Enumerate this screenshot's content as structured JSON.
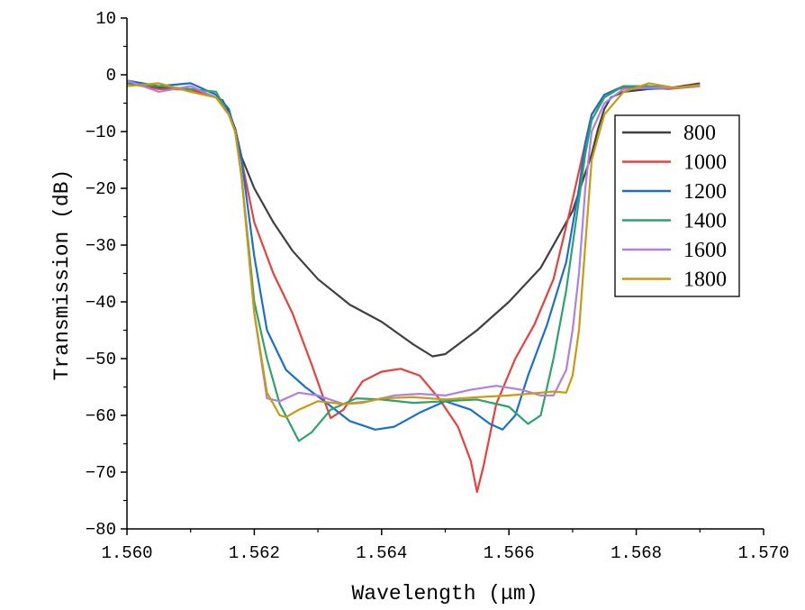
{
  "chart_data": {
    "type": "line",
    "title": "",
    "xlabel": "Wavelength (μm)",
    "ylabel": "Transmission (dB)",
    "xlim": [
      1.56,
      1.57
    ],
    "ylim": [
      -80,
      10
    ],
    "xticks": [
      "1.560",
      "1.562",
      "1.564",
      "1.566",
      "1.568",
      "1.570"
    ],
    "yticks": [
      "10",
      "0",
      "−10",
      "−20",
      "−30",
      "−40",
      "−50",
      "−60",
      "−70",
      "−80"
    ],
    "grid": false,
    "legend_position": "top-right",
    "series": [
      {
        "name": "800",
        "color": "#404040",
        "x": [
          1.56,
          1.5605,
          1.561,
          1.5613,
          1.5615,
          1.5616,
          1.5617,
          1.5618,
          1.562,
          1.5623,
          1.5626,
          1.563,
          1.5635,
          1.564,
          1.5645,
          1.5648,
          1.565,
          1.5655,
          1.566,
          1.5665,
          1.567,
          1.5673,
          1.5674,
          1.5675,
          1.5676,
          1.5678,
          1.5682,
          1.5686,
          1.569
        ],
        "y": [
          -1.5,
          -2.2,
          -2.5,
          -3.5,
          -4.5,
          -6.5,
          -9.5,
          -14.5,
          -20,
          -26,
          -31,
          -36,
          -40.5,
          -43.5,
          -47.5,
          -49.6,
          -49.2,
          -45,
          -40,
          -34,
          -24,
          -14,
          -9.5,
          -6,
          -4,
          -3,
          -2.5,
          -2.2,
          -1.5
        ]
      },
      {
        "name": "1000",
        "color": "#e8403c",
        "x": [
          1.56,
          1.5605,
          1.561,
          1.5614,
          1.5616,
          1.5617,
          1.5618,
          1.562,
          1.5623,
          1.5626,
          1.5629,
          1.5632,
          1.5634,
          1.5637,
          1.564,
          1.5643,
          1.5646,
          1.5649,
          1.5652,
          1.5654,
          1.5655,
          1.5656,
          1.5658,
          1.5661,
          1.5664,
          1.5667,
          1.567,
          1.5672,
          1.5673,
          1.5675,
          1.5677,
          1.568,
          1.5685,
          1.569
        ],
        "y": [
          -1.5,
          -2.5,
          -2.6,
          -4,
          -7,
          -10,
          -15,
          -26,
          -35,
          -42,
          -51,
          -60.5,
          -59,
          -54,
          -52.3,
          -51.8,
          -53,
          -57,
          -62,
          -68,
          -73.5,
          -69,
          -58,
          -50,
          -44,
          -36,
          -22,
          -12,
          -7,
          -3.5,
          -2.5,
          -2,
          -2.5,
          -2
        ]
      },
      {
        "name": "1200",
        "color": "#1a6fce",
        "x": [
          1.56,
          1.5605,
          1.561,
          1.5614,
          1.5616,
          1.5617,
          1.5618,
          1.562,
          1.5622,
          1.5625,
          1.5628,
          1.5631,
          1.5635,
          1.5639,
          1.5642,
          1.5646,
          1.565,
          1.5654,
          1.5657,
          1.5659,
          1.5661,
          1.5663,
          1.5666,
          1.5669,
          1.5671,
          1.5672,
          1.5673,
          1.5675,
          1.5678,
          1.5682,
          1.5686,
          1.569
        ],
        "y": [
          -1,
          -2,
          -1.5,
          -3.5,
          -6,
          -10,
          -15,
          -32,
          -45,
          -52,
          -55,
          -57.5,
          -61,
          -62.5,
          -62,
          -59.5,
          -57.5,
          -59,
          -61.5,
          -62.5,
          -60,
          -53,
          -44,
          -33,
          -20,
          -12,
          -7,
          -3.5,
          -2,
          -2.5,
          -2.3,
          -2
        ]
      },
      {
        "name": "1400",
        "color": "#2ea26c",
        "x": [
          1.56,
          1.5605,
          1.561,
          1.5614,
          1.5616,
          1.5617,
          1.5618,
          1.562,
          1.5622,
          1.5624,
          1.5627,
          1.5629,
          1.5632,
          1.5636,
          1.564,
          1.5645,
          1.565,
          1.5655,
          1.566,
          1.5663,
          1.5665,
          1.5667,
          1.5669,
          1.5671,
          1.5672,
          1.5673,
          1.5675,
          1.5678,
          1.5682,
          1.5686,
          1.569
        ],
        "y": [
          -1.5,
          -2,
          -2.5,
          -3,
          -7,
          -10,
          -18,
          -40,
          -50,
          -58,
          -64.5,
          -63,
          -59,
          -57,
          -57.2,
          -57.8,
          -57.5,
          -57.2,
          -58.5,
          -61.5,
          -60,
          -50,
          -38,
          -22,
          -14,
          -8,
          -4,
          -2,
          -2,
          -2.3,
          -2
        ]
      },
      {
        "name": "1600",
        "color": "#b07fe0",
        "x": [
          1.56,
          1.5605,
          1.561,
          1.5614,
          1.5616,
          1.5617,
          1.5618,
          1.562,
          1.5622,
          1.5624,
          1.5627,
          1.563,
          1.5634,
          1.5638,
          1.5642,
          1.5646,
          1.565,
          1.5654,
          1.5658,
          1.5662,
          1.5665,
          1.5667,
          1.5669,
          1.567,
          1.5671,
          1.5672,
          1.5673,
          1.5675,
          1.5678,
          1.5682,
          1.5686,
          1.569
        ],
        "y": [
          -1,
          -3,
          -2,
          -4,
          -7,
          -10,
          -18,
          -42,
          -57,
          -57.5,
          -56,
          -56.5,
          -58,
          -57.5,
          -56.5,
          -56.2,
          -56.5,
          -55.5,
          -54.8,
          -55.5,
          -56.5,
          -56.5,
          -52,
          -45,
          -35,
          -20,
          -10,
          -5,
          -2.5,
          -2.3,
          -2.3,
          -2
        ]
      },
      {
        "name": "1800",
        "color": "#c89a0e",
        "x": [
          1.56,
          1.5605,
          1.561,
          1.5614,
          1.5616,
          1.5617,
          1.5618,
          1.562,
          1.5622,
          1.5624,
          1.5625,
          1.5627,
          1.563,
          1.5634,
          1.5637,
          1.564,
          1.5645,
          1.565,
          1.5655,
          1.566,
          1.5665,
          1.5667,
          1.5669,
          1.567,
          1.5671,
          1.5672,
          1.5673,
          1.5675,
          1.5678,
          1.5682,
          1.5686,
          1.569
        ],
        "y": [
          -2,
          -1.5,
          -3,
          -4,
          -7,
          -10,
          -18,
          -42,
          -56,
          -60,
          -60.3,
          -59,
          -57.5,
          -58,
          -57.8,
          -57,
          -56.8,
          -57.2,
          -56.8,
          -56.5,
          -56,
          -55.8,
          -56,
          -53,
          -45,
          -30,
          -15,
          -7,
          -3,
          -1.5,
          -2.3,
          -1.8
        ]
      }
    ]
  }
}
